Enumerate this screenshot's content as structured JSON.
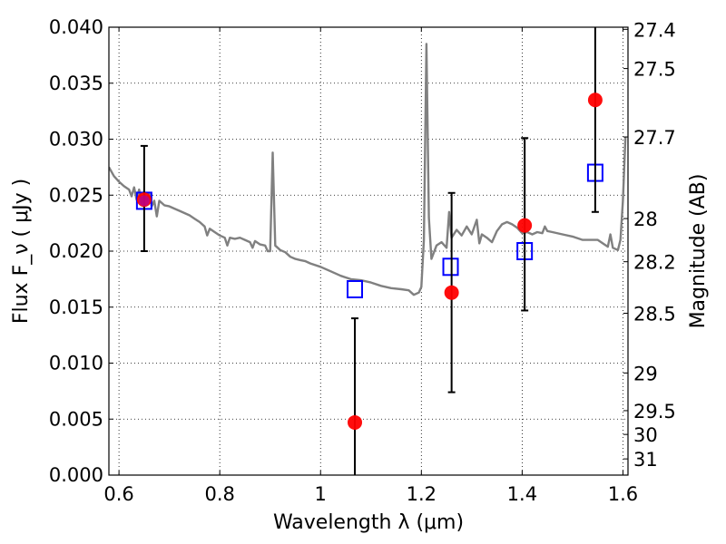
{
  "chart_data": {
    "type": "scatter",
    "xlabel": "Wavelength  λ (μm)",
    "ylabel": "Flux  F_ν  ( μJy )",
    "y2label": "Magnitude (AB)",
    "xlim": [
      0.58,
      1.61
    ],
    "ylim": [
      0.0,
      0.04
    ],
    "grid": true,
    "x_ticks": [
      {
        "value": 0.6,
        "label": "0.6"
      },
      {
        "value": 0.8,
        "label": "0.8"
      },
      {
        "value": 1.0,
        "label": "1"
      },
      {
        "value": 1.2,
        "label": "1.2"
      },
      {
        "value": 1.4,
        "label": "1.4"
      },
      {
        "value": 1.6,
        "label": "1.6"
      }
    ],
    "y_ticks": [
      {
        "value": 0.0,
        "label": "0.000"
      },
      {
        "value": 0.005,
        "label": "0.005"
      },
      {
        "value": 0.01,
        "label": "0.010"
      },
      {
        "value": 0.015,
        "label": "0.015"
      },
      {
        "value": 0.02,
        "label": "0.020"
      },
      {
        "value": 0.025,
        "label": "0.025"
      },
      {
        "value": 0.03,
        "label": "0.030"
      },
      {
        "value": 0.035,
        "label": "0.035"
      },
      {
        "value": 0.04,
        "label": "0.040"
      }
    ],
    "y2_ticks": [
      {
        "value": 27.4,
        "label": "27.4"
      },
      {
        "value": 27.5,
        "label": "27.5"
      },
      {
        "value": 27.7,
        "label": "27.7"
      },
      {
        "value": 28.0,
        "label": "28"
      },
      {
        "value": 28.2,
        "label": "28.2"
      },
      {
        "value": 28.5,
        "label": "28.5"
      },
      {
        "value": 29.0,
        "label": "29"
      },
      {
        "value": 29.5,
        "label": "29.5"
      },
      {
        "value": 30.0,
        "label": "30"
      },
      {
        "value": 31.0,
        "label": "31"
      }
    ],
    "series": [
      {
        "type": "line",
        "color": "#808080",
        "points": [
          [
            0.58,
            0.0275
          ],
          [
            0.59,
            0.0267
          ],
          [
            0.6,
            0.0262
          ],
          [
            0.61,
            0.0258
          ],
          [
            0.62,
            0.0255
          ],
          [
            0.625,
            0.0249
          ],
          [
            0.63,
            0.0257
          ],
          [
            0.635,
            0.0246
          ],
          [
            0.64,
            0.0255
          ],
          [
            0.645,
            0.0243
          ],
          [
            0.65,
            0.0251
          ],
          [
            0.655,
            0.0246
          ],
          [
            0.66,
            0.0252
          ],
          [
            0.665,
            0.024
          ],
          [
            0.67,
            0.0245
          ],
          [
            0.675,
            0.0231
          ],
          [
            0.68,
            0.0245
          ],
          [
            0.69,
            0.0241
          ],
          [
            0.7,
            0.024
          ],
          [
            0.71,
            0.0238
          ],
          [
            0.72,
            0.0236
          ],
          [
            0.73,
            0.0234
          ],
          [
            0.74,
            0.0232
          ],
          [
            0.75,
            0.0229
          ],
          [
            0.76,
            0.0226
          ],
          [
            0.77,
            0.0222
          ],
          [
            0.775,
            0.0214
          ],
          [
            0.78,
            0.022
          ],
          [
            0.79,
            0.0217
          ],
          [
            0.8,
            0.0214
          ],
          [
            0.81,
            0.0212
          ],
          [
            0.815,
            0.0205
          ],
          [
            0.82,
            0.0212
          ],
          [
            0.83,
            0.0211
          ],
          [
            0.84,
            0.0212
          ],
          [
            0.85,
            0.021
          ],
          [
            0.86,
            0.0208
          ],
          [
            0.865,
            0.0203
          ],
          [
            0.87,
            0.0209
          ],
          [
            0.88,
            0.0206
          ],
          [
            0.89,
            0.0205
          ],
          [
            0.895,
            0.02
          ],
          [
            0.9,
            0.02
          ],
          [
            0.905,
            0.0288
          ],
          [
            0.91,
            0.0205
          ],
          [
            0.92,
            0.0201
          ],
          [
            0.93,
            0.0199
          ],
          [
            0.94,
            0.0195
          ],
          [
            0.95,
            0.0193
          ],
          [
            0.96,
            0.0192
          ],
          [
            0.97,
            0.0191
          ],
          [
            0.98,
            0.0189
          ],
          [
            1.0,
            0.0186
          ],
          [
            1.02,
            0.0182
          ],
          [
            1.04,
            0.0178
          ],
          [
            1.06,
            0.0175
          ],
          [
            1.08,
            0.0174
          ],
          [
            1.1,
            0.0172
          ],
          [
            1.12,
            0.0169
          ],
          [
            1.14,
            0.0167
          ],
          [
            1.16,
            0.0166
          ],
          [
            1.175,
            0.0165
          ],
          [
            1.185,
            0.0161
          ],
          [
            1.195,
            0.0163
          ],
          [
            1.2,
            0.0168
          ],
          [
            1.205,
            0.021
          ],
          [
            1.21,
            0.0385
          ],
          [
            1.215,
            0.023
          ],
          [
            1.22,
            0.0193
          ],
          [
            1.23,
            0.0205
          ],
          [
            1.24,
            0.0208
          ],
          [
            1.25,
            0.0203
          ],
          [
            1.255,
            0.0235
          ],
          [
            1.26,
            0.0212
          ],
          [
            1.27,
            0.0219
          ],
          [
            1.28,
            0.0214
          ],
          [
            1.29,
            0.0222
          ],
          [
            1.3,
            0.0215
          ],
          [
            1.31,
            0.0228
          ],
          [
            1.315,
            0.0207
          ],
          [
            1.32,
            0.0215
          ],
          [
            1.33,
            0.0212
          ],
          [
            1.34,
            0.0208
          ],
          [
            1.35,
            0.0218
          ],
          [
            1.36,
            0.0224
          ],
          [
            1.37,
            0.0226
          ],
          [
            1.38,
            0.0224
          ],
          [
            1.39,
            0.0221
          ],
          [
            1.4,
            0.0216
          ],
          [
            1.41,
            0.0217
          ],
          [
            1.42,
            0.0215
          ],
          [
            1.43,
            0.0217
          ],
          [
            1.44,
            0.0216
          ],
          [
            1.445,
            0.0222
          ],
          [
            1.45,
            0.0218
          ],
          [
            1.46,
            0.0217
          ],
          [
            1.48,
            0.0215
          ],
          [
            1.5,
            0.0213
          ],
          [
            1.52,
            0.021
          ],
          [
            1.54,
            0.021
          ],
          [
            1.55,
            0.021
          ],
          [
            1.56,
            0.0207
          ],
          [
            1.57,
            0.0204
          ],
          [
            1.575,
            0.0215
          ],
          [
            1.58,
            0.0203
          ],
          [
            1.59,
            0.0201
          ],
          [
            1.595,
            0.021
          ],
          [
            1.6,
            0.0245
          ],
          [
            1.605,
            0.0302
          ]
        ]
      },
      {
        "type": "scatter",
        "marker": "square",
        "color": "#0000ff",
        "points": [
          [
            0.65,
            0.0245
          ],
          [
            1.068,
            0.0166
          ],
          [
            1.258,
            0.0186
          ],
          [
            1.405,
            0.02
          ],
          [
            1.545,
            0.027
          ]
        ]
      },
      {
        "type": "scatter",
        "marker": "circle",
        "color": "#ff0000",
        "points": [
          [
            0.65,
            0.0246
          ],
          [
            1.068,
            0.0047
          ],
          [
            1.26,
            0.0163
          ],
          [
            1.405,
            0.0223
          ],
          [
            1.545,
            0.0335
          ]
        ],
        "error_bars": [
          [
            0.02,
            0.0294
          ],
          [
            -0.0005,
            0.014
          ],
          [
            0.0074,
            0.0252
          ],
          [
            0.0147,
            0.0301
          ],
          [
            0.0235,
            0.0405
          ]
        ]
      }
    ]
  }
}
